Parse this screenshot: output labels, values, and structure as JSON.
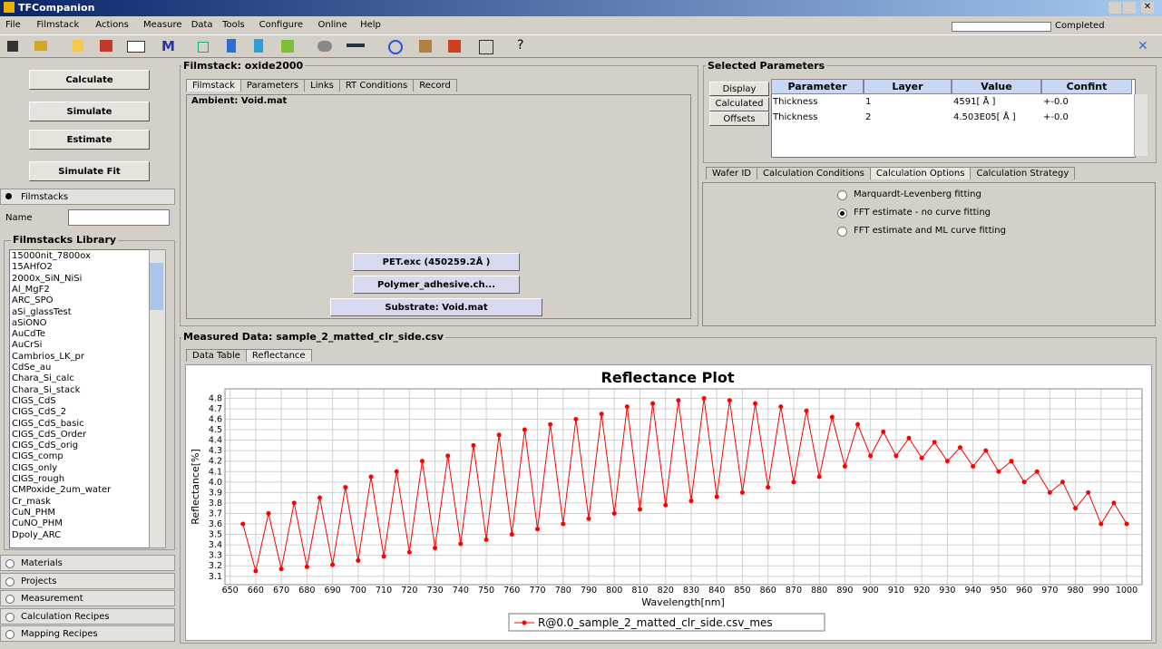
{
  "window": {
    "title": "TFCompanion",
    "progress_label": "Completed"
  },
  "menu": [
    "File",
    "Filmstack",
    "Actions",
    "Measure",
    "Data",
    "Tools",
    "Configure",
    "Online",
    "Help"
  ],
  "toolbar": {
    "m_label": "M",
    "help_label": "?"
  },
  "left": {
    "buttons": [
      "Calculate",
      "Simulate",
      "Estimate",
      "Simulate Fit"
    ],
    "filmstacks_tab": "Filmstacks",
    "name_label": "Name",
    "library_title": "Filmstacks Library",
    "library": [
      "15000nit_7800ox",
      "15AHfO2",
      "2000x_SiN_NiSi",
      "Al_MgF2",
      "ARC_SPO",
      "aSi_glassTest",
      "aSiONO",
      "AuCdTe",
      "AuCrSi",
      "Cambrios_LK_pr",
      "CdSe_au",
      "Chara_Si_calc",
      "Chara_Si_stack",
      "CIGS_CdS",
      "CIGS_CdS_2",
      "CIGS_CdS_basic",
      "CIGS_CdS_Order",
      "CIGS_CdS_orig",
      "CIGS_comp",
      "CIGS_only",
      "CIGS_rough",
      "CMPoxide_2um_water",
      "Cr_mask",
      "CuN_PHM",
      "CuNO_PHM",
      "Dpoly_ARC"
    ],
    "bottom_tabs": [
      "Materials",
      "Projects",
      "Measurement",
      "Calculation Recipes",
      "Mapping Recipes"
    ]
  },
  "filmstack": {
    "title": "Filmstack: oxide2000",
    "tabs": [
      "Filmstack",
      "Parameters",
      "Links",
      "RT Conditions",
      "Record"
    ],
    "ambient": "Ambient: Void.mat",
    "layers": [
      "PET.exc (450259.2Å )",
      "Polymer_adhesive.ch...",
      "Substrate: Void.mat"
    ]
  },
  "selected_parameters": {
    "title": "Selected Parameters",
    "side_buttons": [
      "Display",
      "Calculated",
      "Offsets"
    ],
    "table": {
      "headers": [
        "Parameter",
        "Layer",
        "Value",
        "Confint"
      ],
      "rows": [
        [
          "Thickness",
          "1",
          "4591[ Å ]",
          "+-0.0"
        ],
        [
          "Thickness",
          "2",
          "4.503E05[ Å ]",
          "+-0.0"
        ]
      ]
    }
  },
  "options": {
    "tabs": [
      "Wafer ID",
      "Calculation Conditions",
      "Calculation Options",
      "Calculation Strategy"
    ],
    "radios": [
      "Marquardt-Levenberg fitting",
      "FFT estimate - no curve fitting",
      "FFT estimate and ML curve fitting"
    ],
    "selected": 1
  },
  "measured": {
    "title": "Measured Data: sample_2_matted_clr_side.csv",
    "tabs": [
      "Data Table",
      "Reflectance"
    ]
  },
  "chart_data": {
    "type": "line",
    "title": "Reflectance Plot",
    "x_label": "Wavelength[nm]",
    "y_label": "Reflectance[%]",
    "x": [
      655,
      660,
      665,
      670,
      675,
      680,
      685,
      690,
      695,
      700,
      705,
      710,
      715,
      720,
      725,
      730,
      735,
      740,
      745,
      750,
      755,
      760,
      765,
      770,
      775,
      780,
      785,
      790,
      795,
      800,
      805,
      810,
      815,
      820,
      825,
      830,
      835,
      840,
      845,
      850,
      855,
      860,
      865,
      870,
      875,
      880,
      885,
      890,
      895,
      900,
      905,
      910,
      915,
      920,
      925,
      930,
      935,
      940,
      945,
      950,
      955,
      960,
      965,
      970,
      975,
      980,
      985,
      990,
      995,
      1000
    ],
    "series": [
      {
        "name": "R@0.0_sample_2_matted_clr_side.csv_mes",
        "color": "#ff0000",
        "values": [
          3.6,
          3.15,
          3.7,
          3.17,
          3.8,
          3.19,
          3.85,
          3.21,
          3.95,
          3.25,
          4.05,
          3.29,
          4.1,
          3.33,
          4.2,
          3.37,
          4.25,
          3.41,
          4.35,
          3.45,
          4.45,
          3.5,
          4.5,
          3.55,
          4.55,
          3.6,
          4.6,
          3.65,
          4.65,
          3.7,
          4.72,
          3.74,
          4.75,
          3.78,
          4.78,
          3.82,
          4.8,
          3.86,
          4.78,
          3.9,
          4.75,
          3.95,
          4.72,
          4.0,
          4.68,
          4.05,
          4.62,
          4.15,
          4.55,
          4.25,
          4.48,
          4.25,
          4.42,
          4.23,
          4.38,
          4.2,
          4.33,
          4.15,
          4.3,
          4.1,
          4.2,
          4.0,
          4.1,
          3.9,
          4.0,
          3.75,
          3.9,
          3.6,
          3.8,
          3.6
        ]
      }
    ],
    "xlim": [
      648,
      1006
    ],
    "ylim": [
      3.02,
      4.89
    ],
    "xticks": [
      650,
      660,
      670,
      680,
      690,
      700,
      710,
      720,
      730,
      740,
      750,
      760,
      770,
      780,
      790,
      800,
      810,
      820,
      830,
      840,
      850,
      860,
      870,
      880,
      890,
      900,
      910,
      920,
      930,
      940,
      950,
      960,
      970,
      980,
      990,
      1000
    ],
    "yticks": [
      3.1,
      3.2,
      3.3,
      3.4,
      3.5,
      3.6,
      3.7,
      3.8,
      3.9,
      {
        "value": 4,
        "label": "4.0"
      },
      4.1,
      4.2,
      4.3,
      4.4,
      4.5,
      4.6,
      4.7,
      4.8
    ],
    "grid": true,
    "legend": "bottom"
  }
}
